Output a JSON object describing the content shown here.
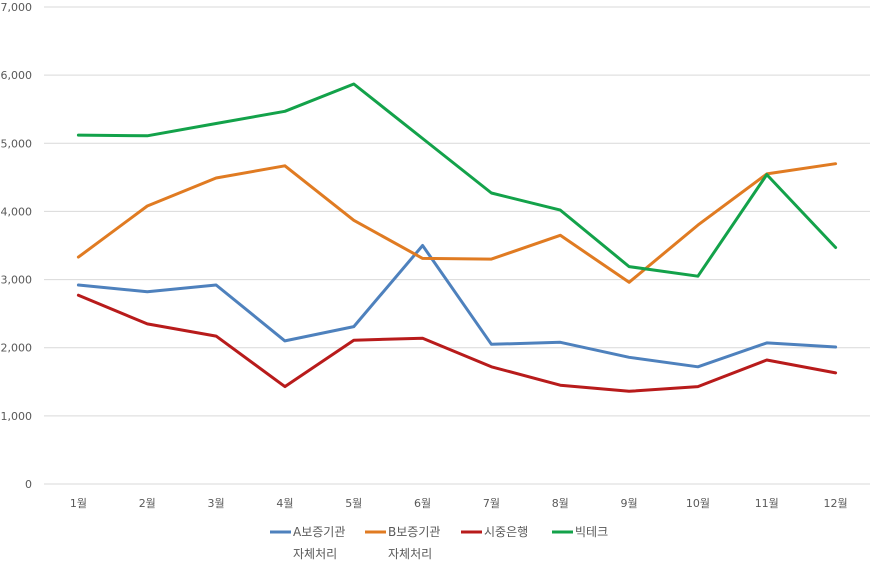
{
  "chart_data": {
    "type": "line",
    "categories": [
      "1월",
      "2월",
      "3월",
      "4월",
      "5월",
      "6월",
      "7월",
      "8월",
      "9월",
      "10월",
      "11월",
      "12월"
    ],
    "ylim": [
      0,
      7000
    ],
    "yticks": [
      "0",
      "1,000",
      "2,000",
      "3,000",
      "4,000",
      "5,000",
      "6,000",
      "7,000"
    ],
    "grid": true,
    "legend_position": "bottom",
    "series": [
      {
        "name": "A보증기관 자체처리",
        "legend_lines": [
          "A보증기관",
          "자체처리"
        ],
        "color": "#4e81bd",
        "values": [
          2920,
          2820,
          2920,
          2100,
          2310,
          3500,
          2050,
          2080,
          1860,
          1720,
          2070,
          2010
        ]
      },
      {
        "name": "B보증기관 자체처리",
        "legend_lines": [
          "B보증기관",
          "자체처리"
        ],
        "color": "#e07b22",
        "values": [
          3330,
          4080,
          4490,
          4670,
          3870,
          3310,
          3300,
          3650,
          2960,
          3800,
          4550,
          4700
        ]
      },
      {
        "name": "시중은행",
        "legend_lines": [
          "시중은행"
        ],
        "color": "#b81b1b",
        "values": [
          2770,
          2350,
          2170,
          1430,
          2110,
          2140,
          1720,
          1450,
          1360,
          1430,
          1820,
          1630
        ]
      },
      {
        "name": "빅테크",
        "legend_lines": [
          "빅테크"
        ],
        "color": "#13a24a",
        "values": [
          5120,
          5110,
          5290,
          5470,
          5870,
          5070,
          4270,
          4020,
          3190,
          3050,
          4540,
          3470
        ]
      }
    ]
  }
}
